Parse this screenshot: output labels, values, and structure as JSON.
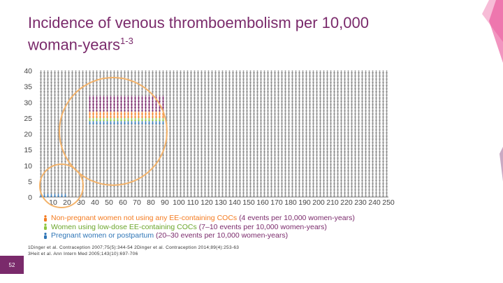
{
  "slide": {
    "title": "Incidence of venous thromboembolism per 10,000 woman-years",
    "title_sup": "1-3",
    "slide_number": "52",
    "references": [
      "1Dinger et al. Contraception 2007;75(5):344-54 2Dinger et al. Contraception 2014;89(4):253-63",
      "3Heit et al. Ann Intern Med 2005;143(10):697-706"
    ]
  },
  "colors": {
    "title": "#7a2a6b",
    "grid_person": "#8c8c8c",
    "non_pregnant": "#f47b20",
    "low_dose": "#8cc63f",
    "pregnant": "#2e75b6",
    "highlighted": "#7a2a6b",
    "circle": "#f3b36b",
    "deco_pink": "#e83e8c",
    "deco_purple": "#7a2a6b",
    "slide_num_bg": "#7a2a6b"
  },
  "chart_data": {
    "type": "pictogram",
    "x_ticks": [
      10,
      20,
      30,
      40,
      50,
      60,
      70,
      80,
      90,
      100,
      110,
      120,
      130,
      140,
      150,
      160,
      170,
      180,
      190,
      200,
      210,
      220,
      230,
      240,
      250
    ],
    "y_ticks": [
      0,
      5,
      10,
      15,
      20,
      25,
      30,
      35,
      40
    ],
    "xlim": [
      0,
      250
    ],
    "ylim": [
      0,
      40
    ],
    "series": [
      {
        "name": "Non-pregnant women not using any EE-containing COCs (4 events per 10,000 women-years)",
        "color": "#f47b20",
        "events_label": "4 events per 10,000 women-years",
        "value": 4
      },
      {
        "name": "Women using low-dose EE-containing COCs (7–10 events per 10,000 women-years)",
        "color": "#8cc63f",
        "events_label": "7–10 events per 10,000 women-years",
        "value": [
          7,
          10
        ]
      },
      {
        "name": "Pregnant women or postpartum (20–30 events per 10,000 women-years)",
        "color": "#2e75b6",
        "events_label": "20–30 events per 10,000 women-years",
        "value": [
          20,
          30
        ]
      }
    ]
  },
  "legend": [
    {
      "key": "non_pregnant",
      "prefix": "Non-pregnant women not using any EE-containing COCs ",
      "paren": "(4 events per 10,000 women-years)",
      "color": "#f47b20"
    },
    {
      "key": "low_dose",
      "prefix": "Women using low-dose EE-containing COCs ",
      "paren": "(7–10 events per 10,000 women-years)",
      "color": "#8cc63f"
    },
    {
      "key": "pregnant",
      "prefix": "Pregnant women or postpartum ",
      "paren": "(20–30 events per 10,000 women-years)",
      "color": "#2e75b6"
    }
  ]
}
